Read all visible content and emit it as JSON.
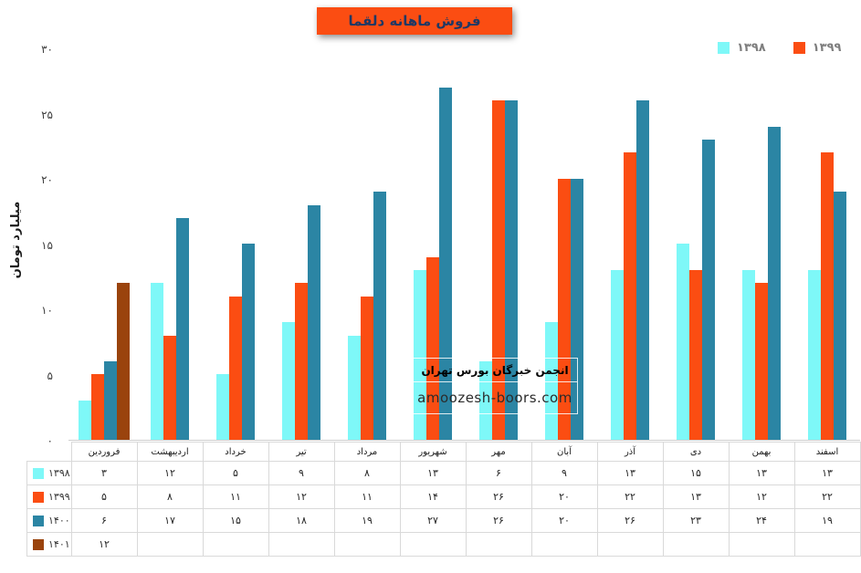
{
  "page": {
    "background": "#FFFFFF"
  },
  "title_banner": {
    "text": "فروش ماهانه دلقما",
    "bg_color": "#FB4D12",
    "text_color": "#1F3864"
  },
  "legend": {
    "items": [
      {
        "label": "۱۳۹۸",
        "color": "#7EF8F8"
      },
      {
        "label": "۱۳۹۹",
        "color": "#FB4D12"
      }
    ]
  },
  "watermark": {
    "line1": "انجمن خبرگان بورس تهران",
    "line2": "amoozesh-boors.com"
  },
  "chart_data": {
    "type": "bar",
    "title": "فروش ماهانه دلقما",
    "xlabel": "",
    "ylabel": "میلیارد تومان",
    "ylim": [
      0,
      30
    ],
    "grid": false,
    "legend_position": "top-right",
    "yticks": [
      {
        "value": 0,
        "label": "۰"
      },
      {
        "value": 5,
        "label": "۵"
      },
      {
        "value": 10,
        "label": "۱۰"
      },
      {
        "value": 15,
        "label": "۱۵"
      },
      {
        "value": 20,
        "label": "۲۰"
      },
      {
        "value": 25,
        "label": "۲۵"
      },
      {
        "value": 30,
        "label": "۳۰"
      }
    ],
    "categories": [
      "فروردین",
      "اردیبهشت",
      "خرداد",
      "تیر",
      "مرداد",
      "شهریور",
      "مهر",
      "آبان",
      "آذر",
      "دی",
      "بهمن",
      "اسفند"
    ],
    "series": [
      {
        "name": "۱۳۹۸",
        "color": "#7EF8F8",
        "values": [
          3,
          12,
          5,
          9,
          8,
          13,
          6,
          9,
          13,
          15,
          13,
          13
        ],
        "labels": [
          "۳",
          "۱۲",
          "۵",
          "۹",
          "۸",
          "۱۳",
          "۶",
          "۹",
          "۱۳",
          "۱۵",
          "۱۳",
          "۱۳"
        ]
      },
      {
        "name": "۱۳۹۹",
        "color": "#FB4D12",
        "values": [
          5,
          8,
          11,
          12,
          11,
          14,
          26,
          20,
          22,
          13,
          12,
          22
        ],
        "labels": [
          "۵",
          "۸",
          "۱۱",
          "۱۲",
          "۱۱",
          "۱۴",
          "۲۶",
          "۲۰",
          "۲۲",
          "۱۳",
          "۱۲",
          "۲۲"
        ]
      },
      {
        "name": "۱۴۰۰",
        "color": "#2B85A4",
        "values": [
          6,
          17,
          15,
          18,
          19,
          27,
          26,
          20,
          26,
          23,
          24,
          19
        ],
        "labels": [
          "۶",
          "۱۷",
          "۱۵",
          "۱۸",
          "۱۹",
          "۲۷",
          "۲۶",
          "۲۰",
          "۲۶",
          "۲۳",
          "۲۴",
          "۱۹"
        ]
      },
      {
        "name": "۱۴۰۱",
        "color": "#9A430D",
        "values": [
          12,
          null,
          null,
          null,
          null,
          null,
          null,
          null,
          null,
          null,
          null,
          null
        ],
        "labels": [
          "۱۲",
          "",
          "",
          "",
          "",
          "",
          "",
          "",
          "",
          "",
          "",
          ""
        ]
      }
    ]
  }
}
